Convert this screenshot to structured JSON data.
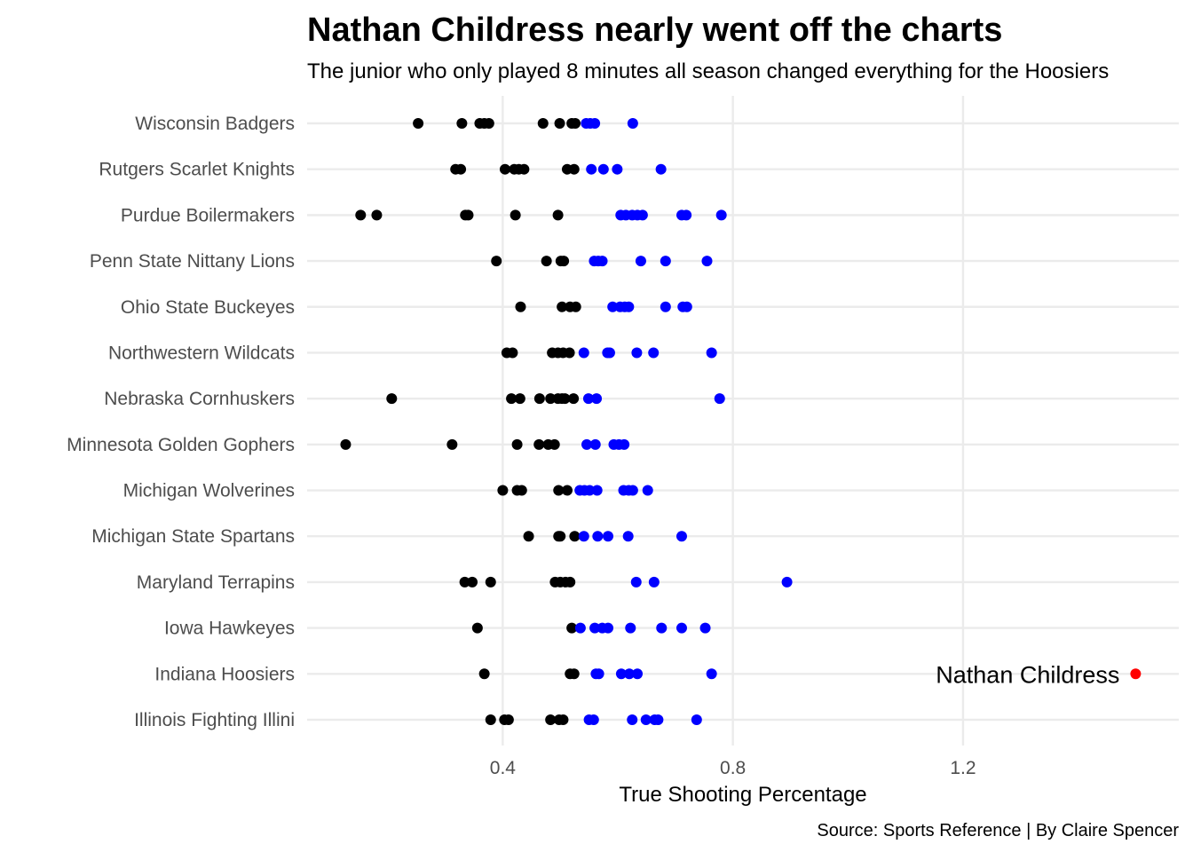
{
  "chart_data": {
    "type": "scatter",
    "title": "Nathan Childress nearly went off the charts",
    "subtitle": "The junior who only played 8 minutes all season changed everything for the Hoosiers",
    "xlabel": "True Shooting Percentage",
    "ylabel": "",
    "caption": "Source: Sports Reference | By Claire Spencer",
    "xlim": [
      0.06,
      1.575
    ],
    "x_ticks": [
      0.4,
      0.8,
      1.2
    ],
    "x_tick_labels": [
      "0.4",
      "0.8",
      "1.2"
    ],
    "grid": true,
    "legend": "none",
    "colors": {
      "below": "#000000",
      "above": "#0000ff",
      "highlight": "#ff0000"
    },
    "categories": [
      "Wisconsin Badgers",
      "Rutgers Scarlet Knights",
      "Purdue Boilermakers",
      "Penn State Nittany Lions",
      "Ohio State Buckeyes",
      "Northwestern Wildcats",
      "Nebraska Cornhuskers",
      "Minnesota Golden Gophers",
      "Michigan Wolverines",
      "Michigan State Spartans",
      "Maryland Terrapins",
      "Iowa Hawkeyes",
      "Indiana Hoosiers",
      "Illinois Fighting Illini"
    ],
    "series": [
      {
        "color": "#000000",
        "points": [
          {
            "team": "Wisconsin Badgers",
            "x": [
              0.253,
              0.329,
              0.36,
              0.368,
              0.376,
              0.47,
              0.499,
              0.52,
              0.526
            ]
          },
          {
            "team": "Rutgers Scarlet Knights",
            "x": [
              0.318,
              0.327,
              0.404,
              0.42,
              0.428,
              0.437,
              0.512,
              0.524
            ]
          },
          {
            "team": "Purdue Boilermakers",
            "x": [
              0.153,
              0.181,
              0.335,
              0.34,
              0.422,
              0.496
            ]
          },
          {
            "team": "Penn State Nittany Lions",
            "x": [
              0.389,
              0.476,
              0.501,
              0.506
            ]
          },
          {
            "team": "Ohio State Buckeyes",
            "x": [
              0.431,
              0.503,
              0.517,
              0.527
            ]
          },
          {
            "team": "Northwestern Wildcats",
            "x": [
              0.407,
              0.417,
              0.486,
              0.496,
              0.505,
              0.516
            ]
          },
          {
            "team": "Nebraska Cornhuskers",
            "x": [
              0.207,
              0.415,
              0.43,
              0.464,
              0.483,
              0.496,
              0.503,
              0.508,
              0.523
            ]
          },
          {
            "team": "Minnesota Golden Gophers",
            "x": [
              0.127,
              0.312,
              0.425,
              0.463,
              0.479,
              0.49
            ]
          },
          {
            "team": "Michigan Wolverines",
            "x": [
              0.4,
              0.425,
              0.433,
              0.497,
              0.512
            ]
          },
          {
            "team": "Michigan State Spartans",
            "x": [
              0.445,
              0.497,
              0.5,
              0.525
            ]
          },
          {
            "team": "Maryland Terrapins",
            "x": [
              0.334,
              0.347,
              0.379,
              0.491,
              0.5,
              0.509,
              0.517
            ]
          },
          {
            "team": "Iowa Hawkeyes",
            "x": [
              0.356,
              0.52
            ]
          },
          {
            "team": "Indiana Hoosiers",
            "x": [
              0.368,
              0.517,
              0.524
            ]
          },
          {
            "team": "Illinois Fighting Illini",
            "x": [
              0.379,
              0.403,
              0.41,
              0.483,
              0.498,
              0.505
            ]
          }
        ]
      },
      {
        "color": "#0000ff",
        "points": [
          {
            "team": "Wisconsin Badgers",
            "x": [
              0.545,
              0.552,
              0.56,
              0.626
            ]
          },
          {
            "team": "Rutgers Scarlet Knights",
            "x": [
              0.554,
              0.575,
              0.599,
              0.675
            ]
          },
          {
            "team": "Purdue Boilermakers",
            "x": [
              0.605,
              0.614,
              0.625,
              0.634,
              0.643,
              0.711,
              0.719,
              0.78
            ]
          },
          {
            "team": "Penn State Nittany Lions",
            "x": [
              0.559,
              0.566,
              0.573,
              0.64,
              0.683,
              0.755
            ]
          },
          {
            "team": "Ohio State Buckeyes",
            "x": [
              0.591,
              0.604,
              0.612,
              0.619,
              0.683,
              0.713,
              0.72
            ]
          },
          {
            "team": "Northwestern Wildcats",
            "x": [
              0.541,
              0.582,
              0.586,
              0.633,
              0.662,
              0.763
            ]
          },
          {
            "team": "Nebraska Cornhuskers",
            "x": [
              0.549,
              0.563,
              0.777
            ]
          },
          {
            "team": "Minnesota Golden Gophers",
            "x": [
              0.546,
              0.561,
              0.593,
              0.602,
              0.611
            ]
          },
          {
            "team": "Michigan Wolverines",
            "x": [
              0.534,
              0.542,
              0.551,
              0.564,
              0.61,
              0.619,
              0.626,
              0.652
            ]
          },
          {
            "team": "Michigan State Spartans",
            "x": [
              0.541,
              0.565,
              0.583,
              0.618,
              0.711
            ]
          },
          {
            "team": "Maryland Terrapins",
            "x": [
              0.632,
              0.663,
              0.894
            ]
          },
          {
            "team": "Iowa Hawkeyes",
            "x": [
              0.535,
              0.56,
              0.573,
              0.583,
              0.622,
              0.676,
              0.711,
              0.752
            ]
          },
          {
            "team": "Indiana Hoosiers",
            "x": [
              0.562,
              0.567,
              0.606,
              0.62,
              0.634,
              0.763
            ]
          },
          {
            "team": "Illinois Fighting Illini",
            "x": [
              0.55,
              0.558,
              0.625,
              0.649,
              0.664,
              0.67,
              0.737
            ]
          }
        ]
      },
      {
        "name": "Nathan Childress",
        "color": "#ff0000",
        "points": [
          {
            "team": "Indiana Hoosiers",
            "x": [
              1.5
            ]
          }
        ]
      }
    ],
    "annotations": [
      {
        "text": "Nathan Childress",
        "team": "Indiana Hoosiers",
        "x": 1.5
      }
    ]
  }
}
